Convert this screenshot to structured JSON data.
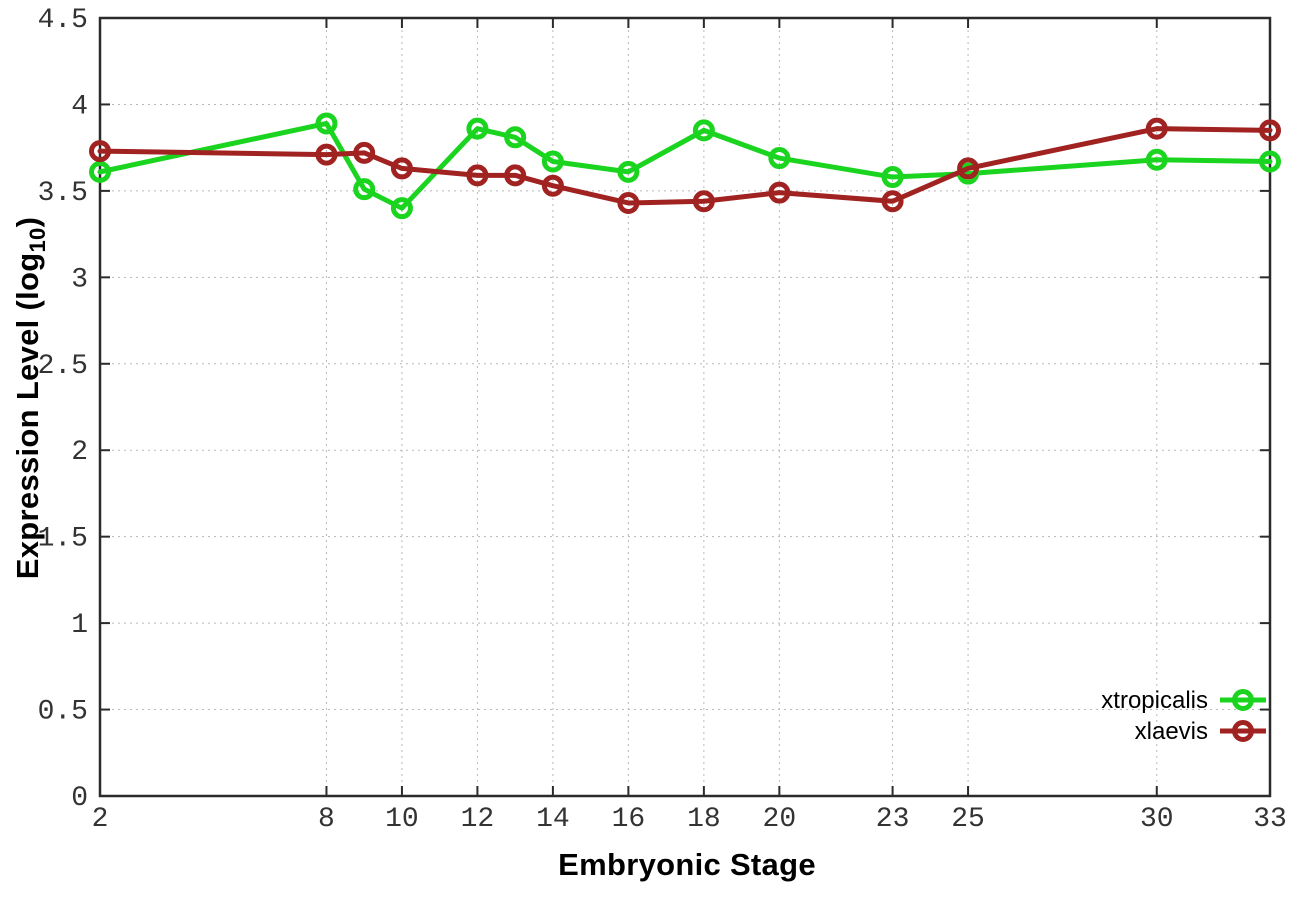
{
  "page": {
    "background": "#ffffff"
  },
  "chart_data": {
    "type": "line",
    "title": "",
    "xlabel": "Embryonic Stage",
    "ylabel": "Expression Level (log10)",
    "ylabel_parts": {
      "prefix": "Expression Level (log",
      "subscript": "10",
      "suffix": ")"
    },
    "xlim": [
      2,
      33
    ],
    "ylim": [
      0,
      4.5
    ],
    "xticks": [
      2,
      8,
      10,
      12,
      14,
      16,
      18,
      20,
      23,
      25,
      30,
      33
    ],
    "yticks": [
      0,
      0.5,
      1,
      1.5,
      2,
      2.5,
      3,
      3.5,
      4,
      4.5
    ],
    "ytick_labels": [
      "0",
      "0.5",
      "1",
      "1.5",
      "2",
      "2.5",
      "3",
      "3.5",
      "4",
      "4.5"
    ],
    "grid": true,
    "grid_style": "dotted",
    "legend_position": "inside-bottom-right",
    "marker": "open-circle",
    "x": [
      2,
      8,
      9,
      10,
      12,
      13,
      14,
      16,
      18,
      20,
      23,
      25,
      30,
      33
    ],
    "series": [
      {
        "name": "xtropicalis",
        "color": "#1ad41f",
        "values": [
          3.61,
          3.89,
          3.51,
          3.4,
          3.86,
          3.81,
          3.67,
          3.61,
          3.85,
          3.69,
          3.58,
          3.6,
          3.68,
          3.67
        ]
      },
      {
        "name": "xlaevis",
        "color": "#a02221",
        "values": [
          3.73,
          3.71,
          3.72,
          3.63,
          3.59,
          3.59,
          3.53,
          3.43,
          3.44,
          3.49,
          3.44,
          3.63,
          3.86,
          3.85
        ]
      }
    ],
    "axis_color": "#2b2b2b",
    "grid_color": "#b8b8b8"
  }
}
